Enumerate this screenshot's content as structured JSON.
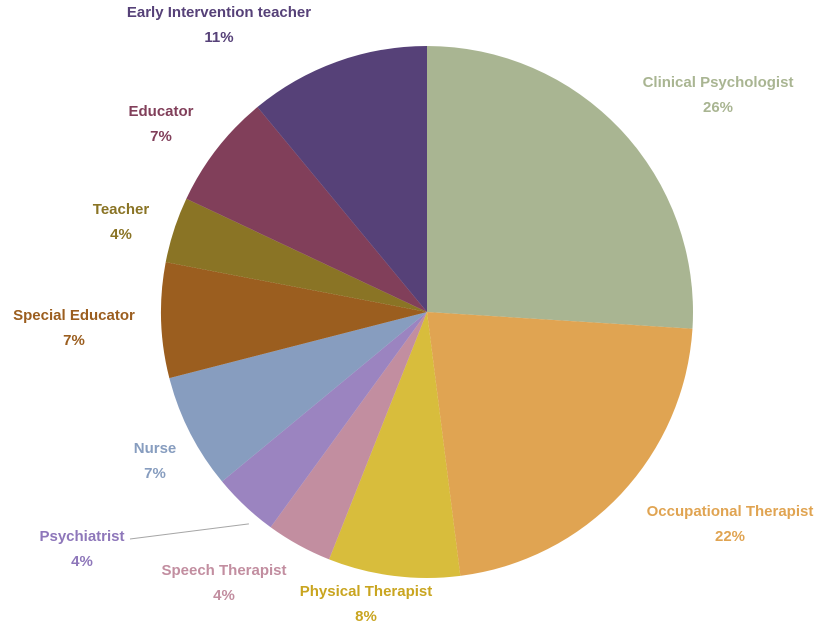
{
  "chart_data": {
    "type": "pie",
    "title": "",
    "slices": [
      {
        "label": "Clinical Psychologist",
        "value": 26,
        "value_label": "26%",
        "color": "#a9b592"
      },
      {
        "label": "Occupational Therapist",
        "value": 22,
        "value_label": "22%",
        "color": "#e0a452"
      },
      {
        "label": "Physical Therapist",
        "value": 8,
        "value_label": "8%",
        "color": "#d8bd3c"
      },
      {
        "label": "Speech Therapist",
        "value": 4,
        "value_label": "4%",
        "color": "#c28ea0"
      },
      {
        "label": "Psychiatrist",
        "value": 4,
        "value_label": "4%",
        "color": "#9b84c0"
      },
      {
        "label": "Nurse",
        "value": 7,
        "value_label": "7%",
        "color": "#879dbf"
      },
      {
        "label": "Special Educator",
        "value": 7,
        "value_label": "7%",
        "color": "#9b5e1f"
      },
      {
        "label": "Teacher",
        "value": 4,
        "value_label": "4%",
        "color": "#8a7425"
      },
      {
        "label": "Educator",
        "value": 7,
        "value_label": "7%",
        "color": "#813f5a"
      },
      {
        "label": "Early Intervention teacher",
        "value": 11,
        "value_label": "11%",
        "color": "#564178"
      }
    ],
    "label_colors": [
      "#a9b592",
      "#e0a452",
      "#c9a520",
      "#c28ea0",
      "#8e77ba",
      "#879dbf",
      "#9b5e1f",
      "#8a7425",
      "#813f5a",
      "#564178"
    ]
  }
}
